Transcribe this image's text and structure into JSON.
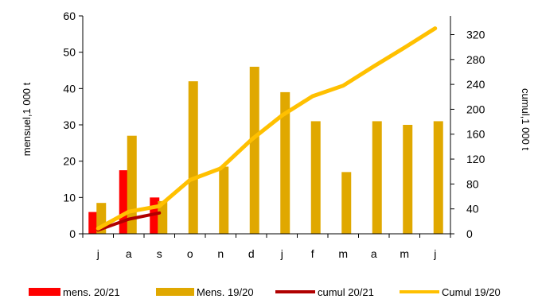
{
  "chart_data": {
    "type": "bar",
    "categories": [
      "j",
      "a",
      "s",
      "o",
      "n",
      "d",
      "j",
      "f",
      "m",
      "a",
      "m",
      "j"
    ],
    "series": [
      {
        "name": "mens. 20/21",
        "kind": "bar",
        "axis": "left",
        "color": "#ff0000",
        "values": [
          6,
          17.5,
          10,
          null,
          null,
          null,
          null,
          null,
          null,
          null,
          null,
          null
        ]
      },
      {
        "name": "Mens. 19/20",
        "kind": "bar",
        "axis": "left",
        "color": "#e0a800",
        "values": [
          8.5,
          27,
          9,
          42,
          18.5,
          46,
          39,
          31,
          17,
          31,
          30,
          31
        ]
      },
      {
        "name": "cumul 20/21",
        "kind": "line",
        "axis": "right",
        "color": "#b00000",
        "values": [
          6,
          23.5,
          33.5,
          null,
          null,
          null,
          null,
          null,
          null,
          null,
          null,
          null
        ]
      },
      {
        "name": "Cumul 19/20",
        "kind": "line",
        "axis": "right",
        "color": "#ffc000",
        "values": [
          8.5,
          35.5,
          44.5,
          86.5,
          105,
          151,
          190,
          221,
          238,
          269,
          299,
          330
        ]
      }
    ],
    "ylabel": "mensuel,1 000 t",
    "y2label": "cumul,1 000 t",
    "ylim": [
      0,
      60
    ],
    "y2lim": [
      0,
      350
    ],
    "yticks": [
      0,
      10,
      20,
      30,
      40,
      50,
      60
    ],
    "y2ticks": [
      0,
      40,
      80,
      120,
      160,
      200,
      240,
      280,
      320
    ],
    "grid": false,
    "legend_position": "bottom"
  }
}
